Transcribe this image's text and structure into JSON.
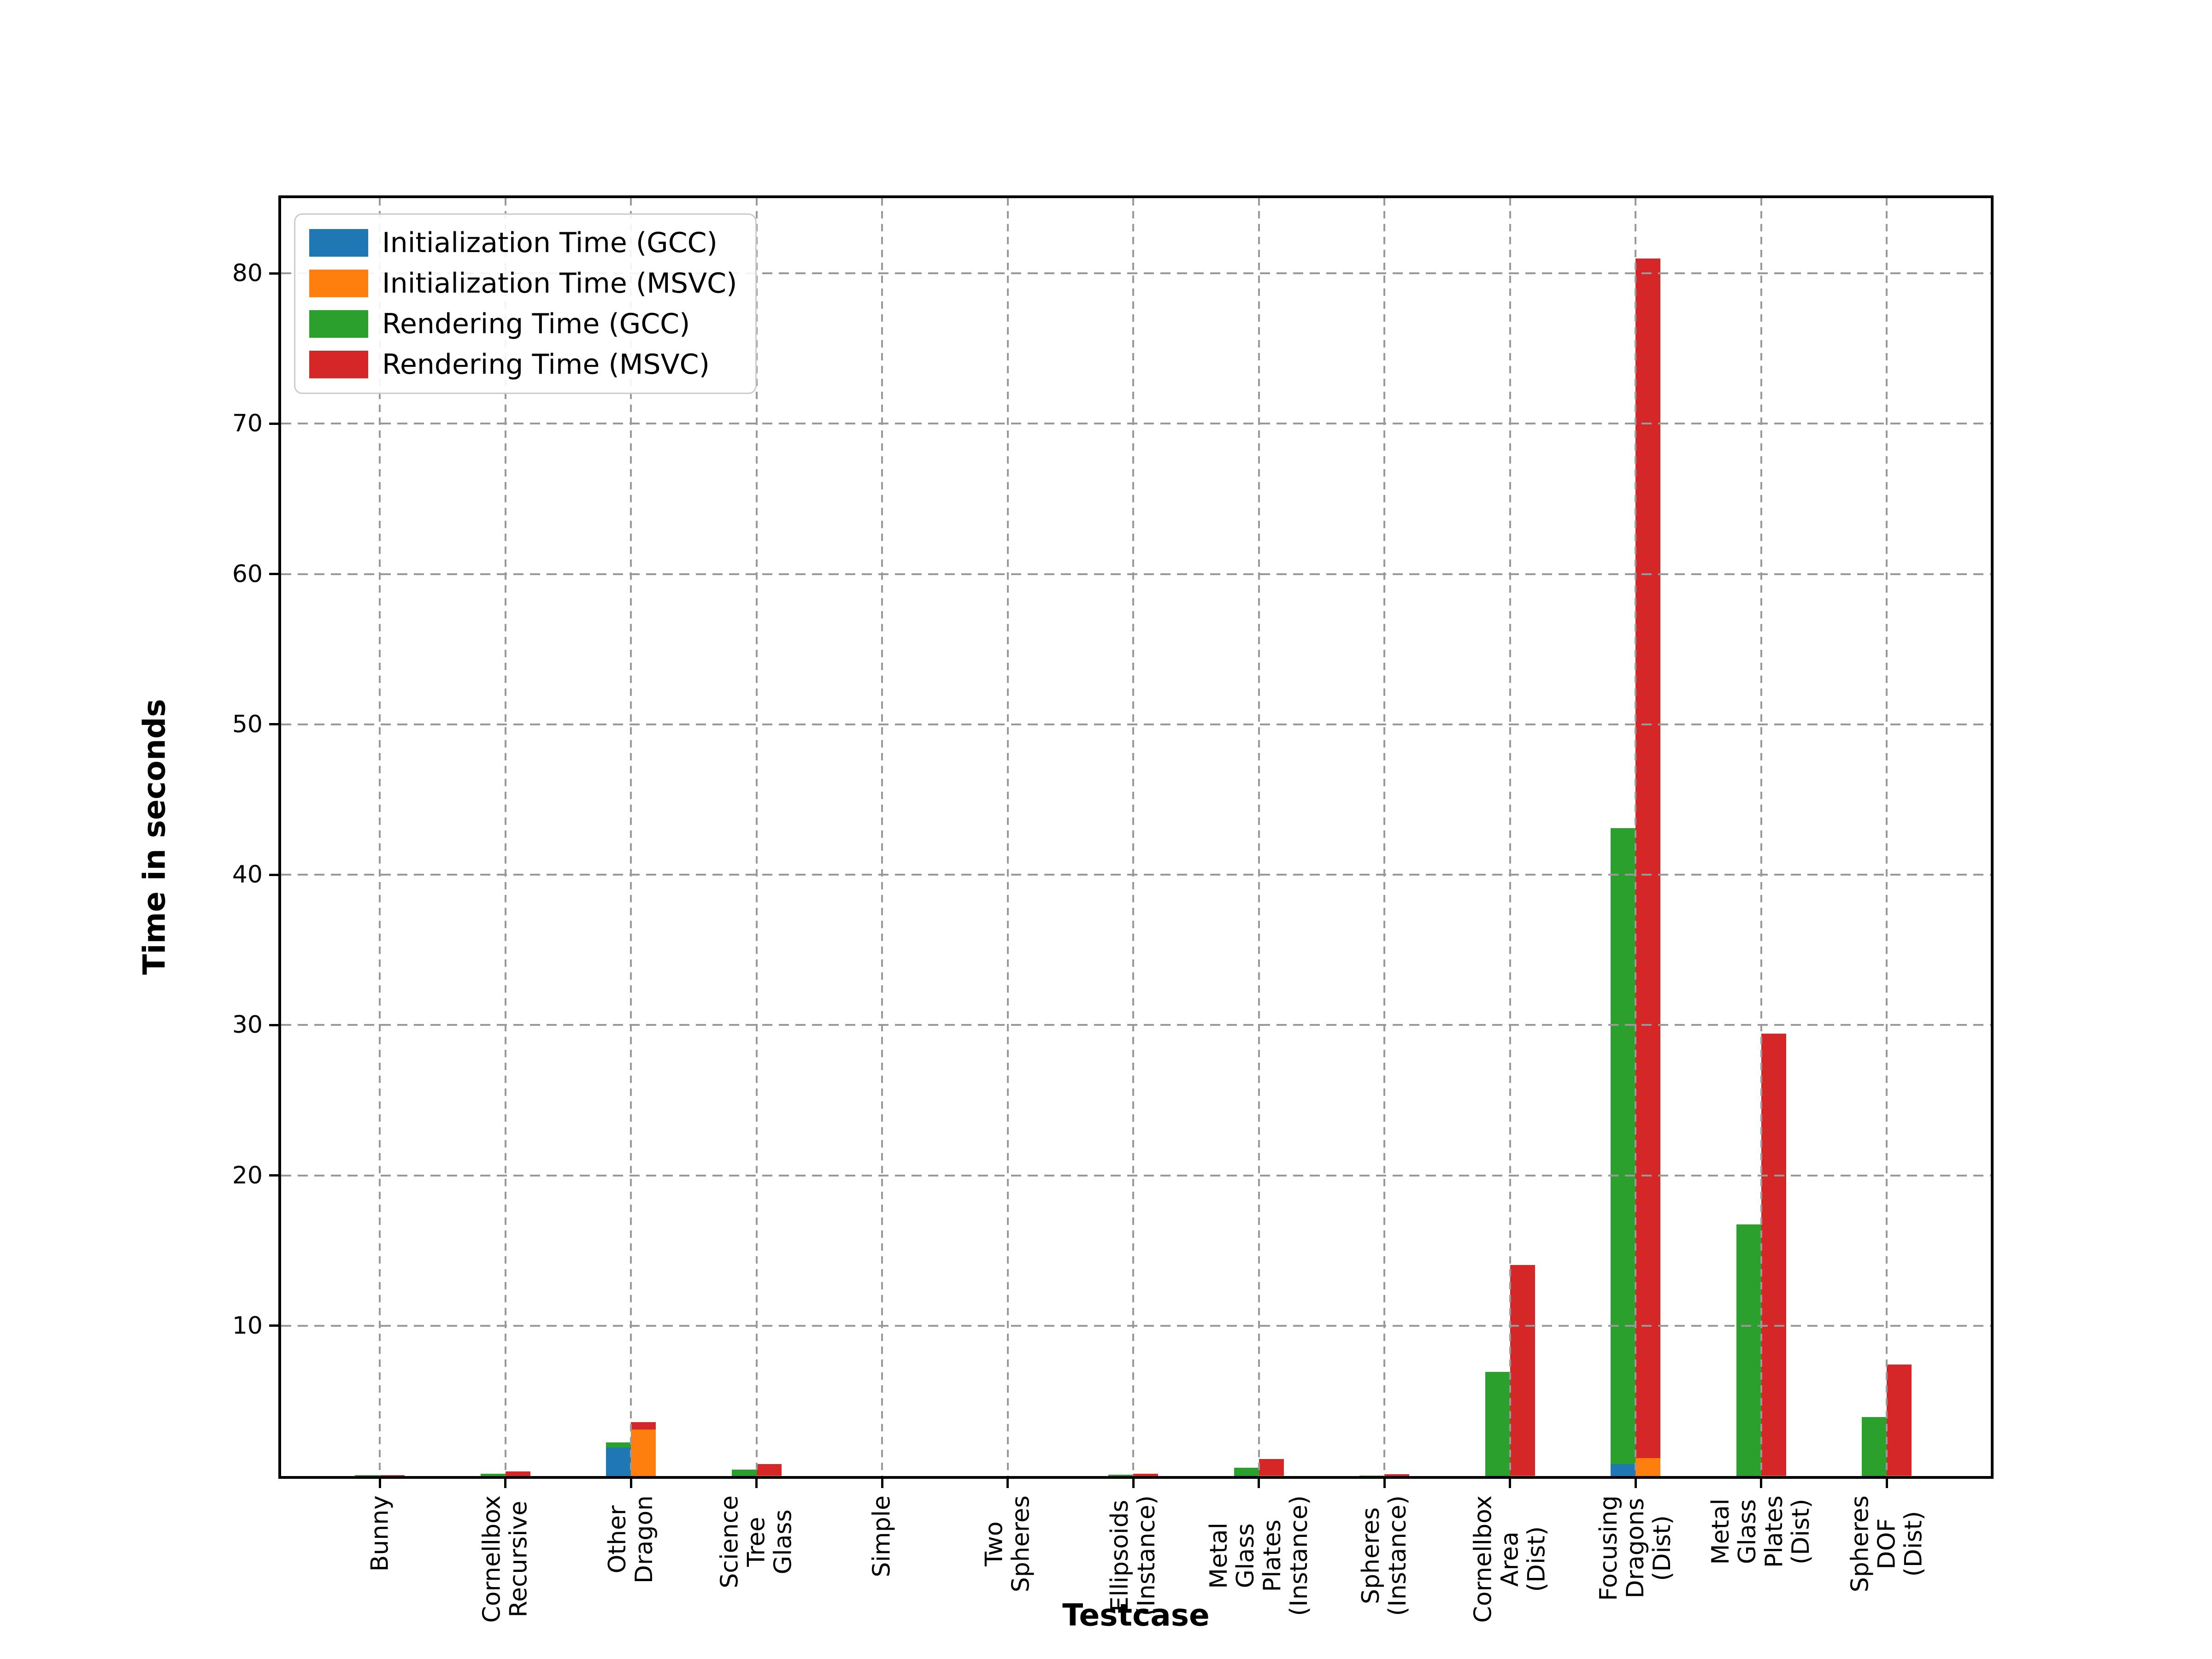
{
  "chart_data": {
    "type": "bar",
    "title": "",
    "xlabel": "Testcase",
    "ylabel": "Time in seconds",
    "ylim": [
      0,
      85
    ],
    "yticks": [
      10,
      20,
      30,
      40,
      50,
      60,
      70,
      80
    ],
    "grid": true,
    "grid_style": "dashed",
    "legend_position": "upper left",
    "bar_layout": "two stacked bars per category: GCC stack (init bottom, render top) and MSVC stack (init bottom, render top)",
    "categories": [
      "Bunny",
      "Cornellbox\nRecursive",
      "Other\nDragon",
      "Science\nTree\nGlass",
      "Simple",
      "Two\nSpheres",
      "Ellipsoids\n(Instance)",
      "Metal\nGlass\nPlates\n(Instance)",
      "Spheres\n(Instance)",
      "Cornellbox\nArea\n(Dist)",
      "Focusing\nDragons\n(Dist)",
      "Metal\nGlass\nPlates\n(Dist)",
      "Spheres\nDOF\n(Dist)"
    ],
    "series": [
      {
        "name": "Initialization Time (GCC)",
        "color": "#1f77b4",
        "stack": "GCC",
        "values": [
          0.01,
          0.01,
          1.9,
          0.02,
          0.005,
          0.005,
          0.01,
          0.02,
          0.005,
          0.03,
          0.8,
          0.03,
          0.02
        ]
      },
      {
        "name": "Initialization Time (MSVC)",
        "color": "#ff7f0e",
        "stack": "MSVC",
        "values": [
          0.01,
          0.01,
          3.1,
          0.02,
          0.005,
          0.005,
          0.01,
          0.02,
          0.005,
          0.03,
          1.2,
          0.03,
          0.02
        ]
      },
      {
        "name": "Rendering Time (GCC)",
        "color": "#2ca02c",
        "stack": "GCC",
        "values": [
          0.04,
          0.14,
          0.35,
          0.4,
          0.01,
          0.01,
          0.08,
          0.53,
          0.03,
          6.9,
          42.3,
          16.7,
          3.9
        ]
      },
      {
        "name": "Rendering Time (MSVC)",
        "color": "#d62728",
        "stack": "MSVC",
        "values": [
          0.05,
          0.3,
          0.5,
          0.77,
          0.01,
          0.01,
          0.14,
          1.1,
          0.12,
          14.0,
          79.8,
          29.4,
          7.4
        ]
      }
    ]
  }
}
